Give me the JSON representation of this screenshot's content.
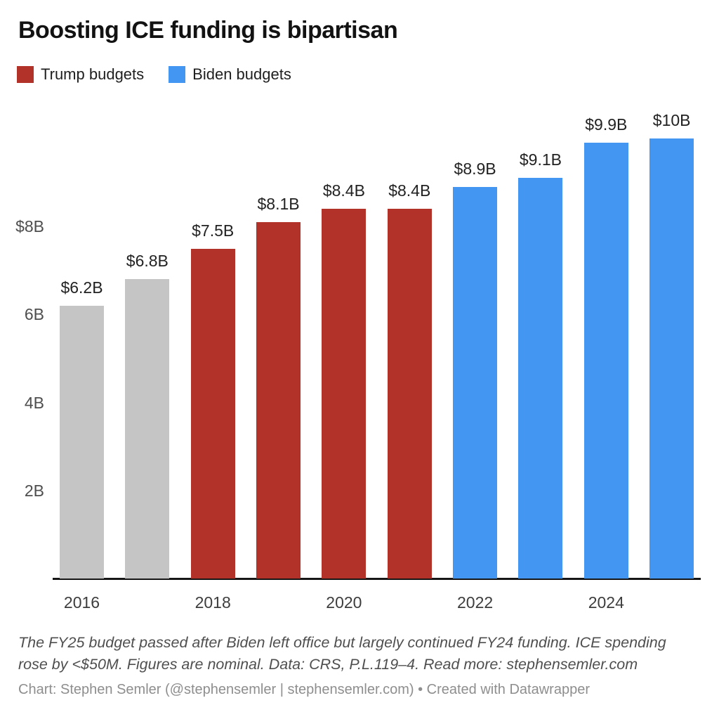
{
  "title": "Boosting ICE funding is bipartisan",
  "legend": {
    "items": [
      {
        "id": "trump",
        "label": "Trump budgets",
        "color": "#b23229"
      },
      {
        "id": "biden",
        "label": "Biden budgets",
        "color": "#4496f3"
      }
    ]
  },
  "chart_data": {
    "type": "bar",
    "title": "Boosting ICE funding is bipartisan",
    "categories": [
      "2016",
      "2017",
      "2018",
      "2019",
      "2020",
      "2021",
      "2022",
      "2023",
      "2024",
      "2025"
    ],
    "values": [
      6.2,
      6.8,
      7.5,
      8.1,
      8.4,
      8.4,
      8.9,
      9.1,
      9.9,
      10
    ],
    "bar_labels": [
      "$6.2B",
      "$6.8B",
      "$7.5B",
      "$8.1B",
      "$8.4B",
      "$8.4B",
      "$8.9B",
      "$9.1B",
      "$9.9B",
      "$10B"
    ],
    "groups": [
      "other",
      "other",
      "trump",
      "trump",
      "trump",
      "trump",
      "biden",
      "biden",
      "biden",
      "biden"
    ],
    "colors": {
      "trump": "#b23229",
      "biden": "#4496f3",
      "other": "#c5c5c5"
    },
    "series": [
      {
        "name": "Trump budgets",
        "color": "#b23229",
        "years": [
          "2018",
          "2019",
          "2020",
          "2021"
        ],
        "values": [
          7.5,
          8.1,
          8.4,
          8.4
        ]
      },
      {
        "name": "Biden budgets",
        "color": "#4496f3",
        "years": [
          "2022",
          "2023",
          "2024",
          "2025"
        ],
        "values": [
          8.9,
          9.1,
          9.9,
          10
        ]
      },
      {
        "name": "(unlabeled gray)",
        "color": "#c5c5c5",
        "years": [
          "2016",
          "2017"
        ],
        "values": [
          6.2,
          6.8
        ]
      }
    ],
    "y_ticks": [
      {
        "value": 2,
        "label": "2B"
      },
      {
        "value": 4,
        "label": "4B"
      },
      {
        "value": 6,
        "label": "6B"
      },
      {
        "value": 8,
        "label": "$8B"
      }
    ],
    "x_ticks": [
      {
        "bar": 0,
        "label": "2016"
      },
      {
        "bar": 2,
        "label": "2018"
      },
      {
        "bar": 4,
        "label": "2020"
      },
      {
        "bar": 6,
        "label": "2022"
      },
      {
        "bar": 8,
        "label": "2024"
      }
    ],
    "ylim": [
      0,
      10.9
    ],
    "grid": "off",
    "legend_position": "top-left",
    "xlabel": "",
    "ylabel": ""
  },
  "notes": "The FY25 budget passed after Biden left office but largely continued FY24 funding. ICE spending rose by <$50M. Figures are nominal. Data: CRS, P.L.119–4. Read more: stephensemler.com",
  "attribution": "Chart: Stephen Semler (@stephensemler | stephensemler.com) • Created with Datawrapper"
}
